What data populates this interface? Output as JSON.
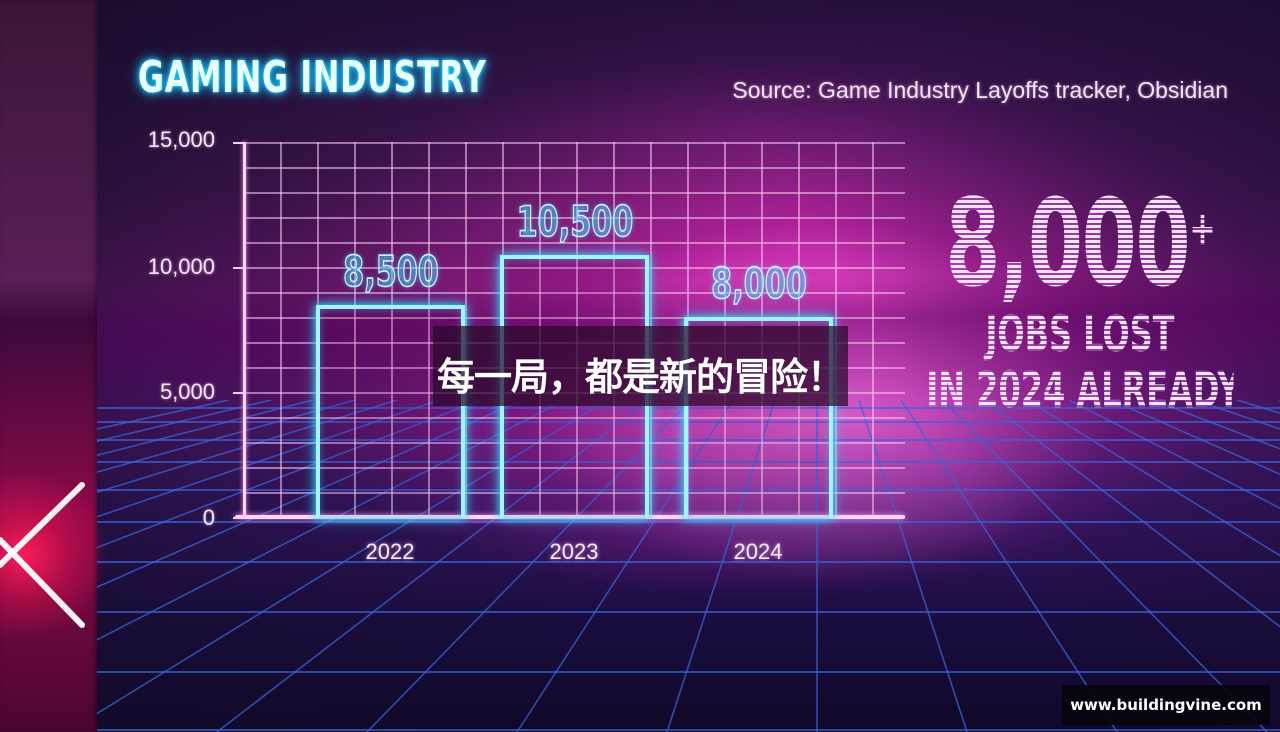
{
  "header": {
    "title": "GAMING INDUSTRY",
    "source": "Source: Game Industry Layoffs tracker, Obsidian"
  },
  "stat": {
    "number": "8,000",
    "plus": "+",
    "line1": "JOBS LOST",
    "line2": "IN 2024 ALREADY"
  },
  "overlay": {
    "banner_text": "每一局，都是新的冒险！",
    "watermark": "www.buildingvine.com"
  },
  "colors": {
    "bar_outline": "#9ff6ff",
    "title_glow": "#33e0ff",
    "axis": "#ffd6fa",
    "background_pink": "#d81ea8",
    "background_dark": "#140a2a"
  },
  "chart_data": {
    "type": "bar",
    "title": "GAMING INDUSTRY",
    "subtitle": "Source: Game Industry Layoffs tracker, Obsidian",
    "xlabel": "",
    "ylabel": "",
    "categories": [
      "2022",
      "2023",
      "2024"
    ],
    "values": [
      8500,
      10500,
      8000
    ],
    "value_labels": [
      "8,500",
      "10,500",
      "8,000"
    ],
    "ylim": [
      0,
      15000
    ],
    "yticks": [
      0,
      5000,
      10000,
      15000
    ],
    "ytick_labels": [
      "0",
      "5,000",
      "10,000",
      "15,000"
    ],
    "grid": true,
    "legend": null,
    "annotations": [
      "8,000+ JOBS LOST IN 2024 ALREADY"
    ]
  }
}
